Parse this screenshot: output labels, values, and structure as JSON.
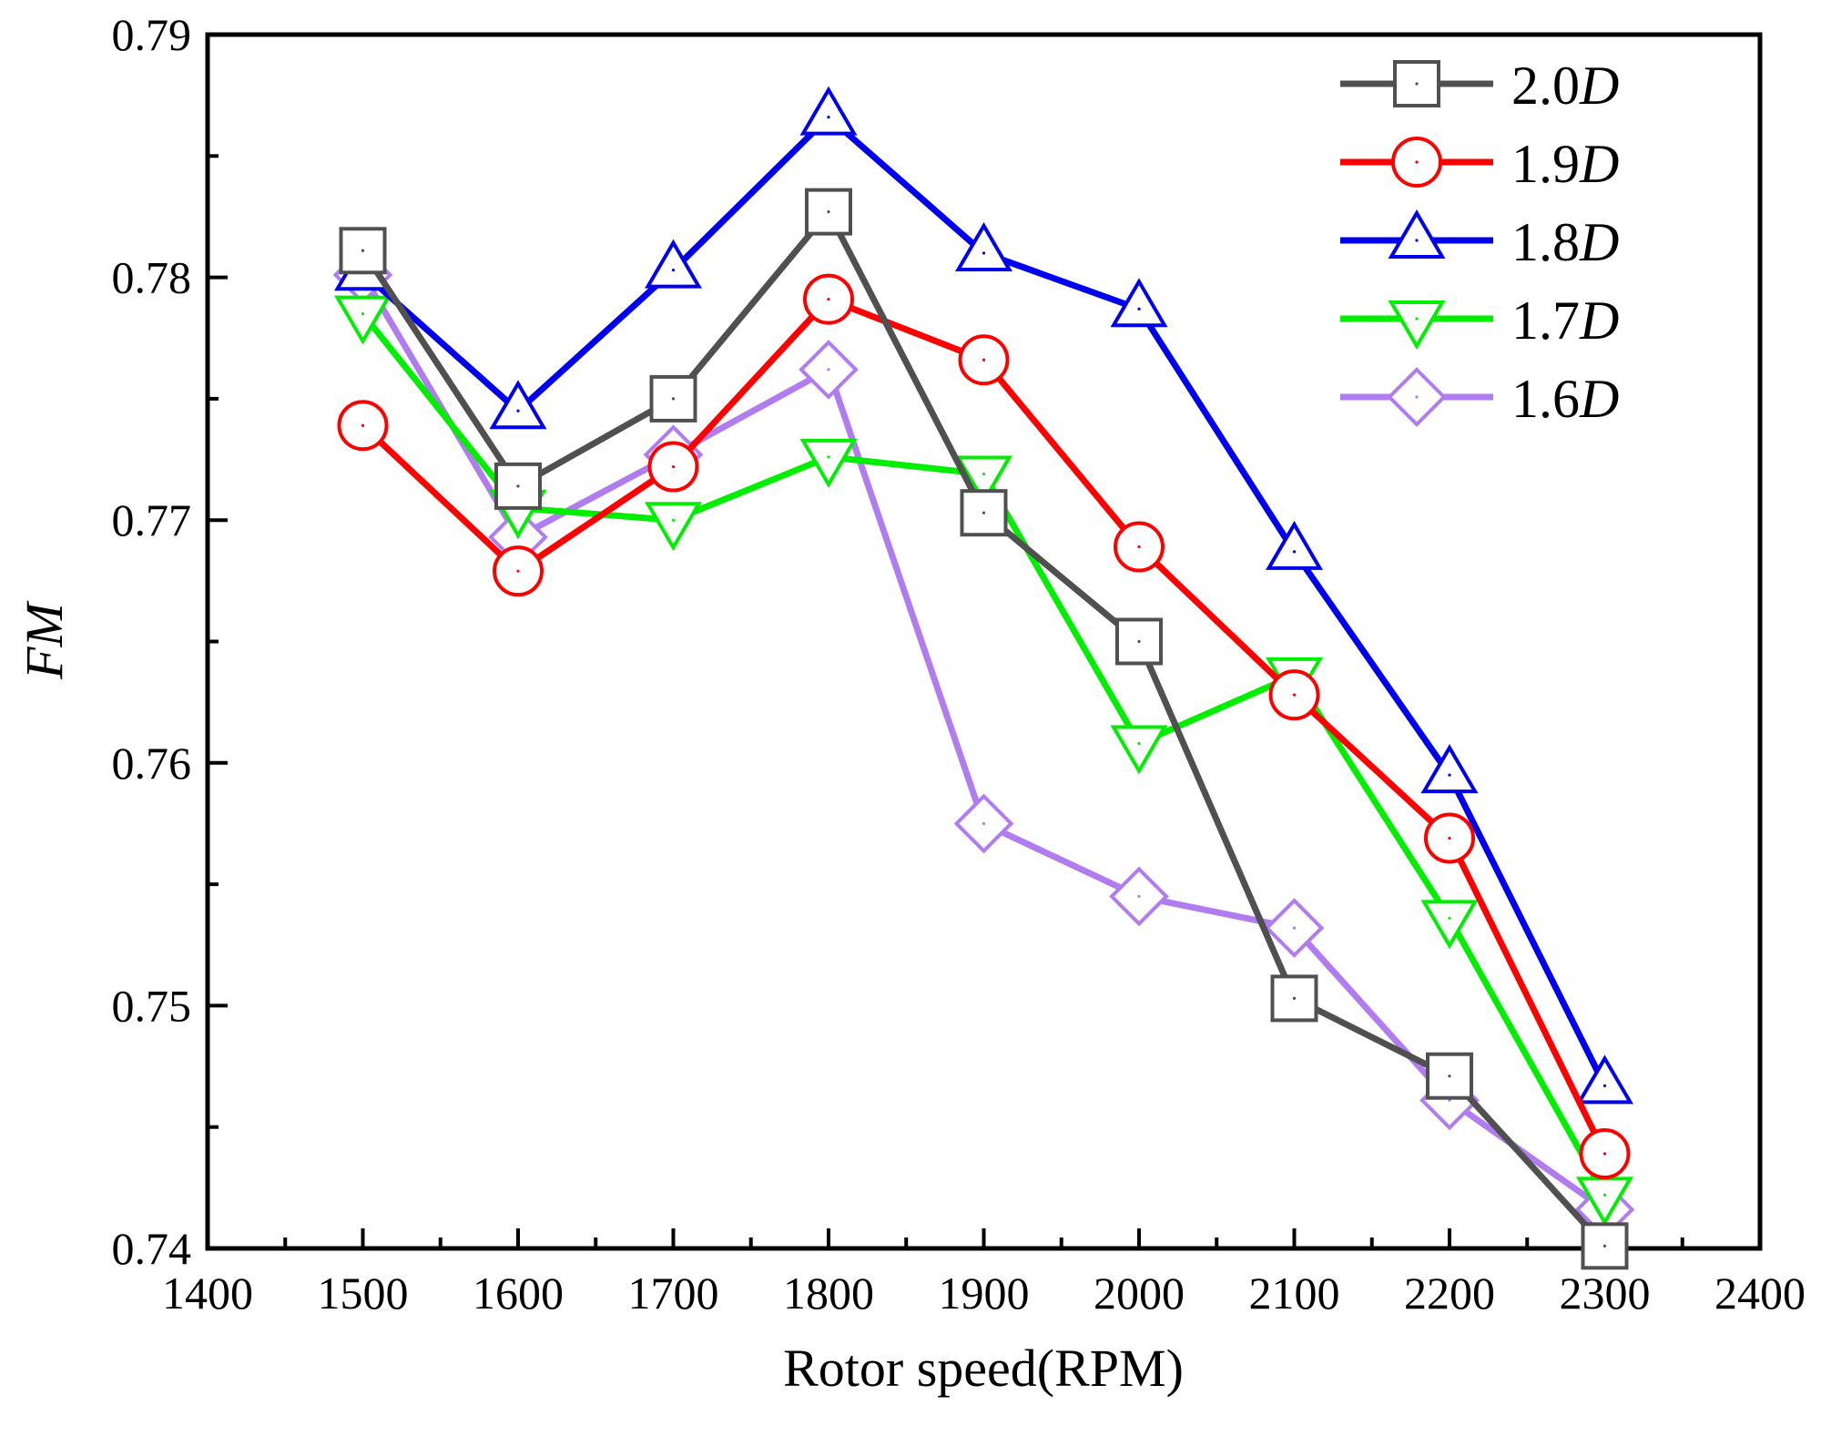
{
  "chart_data": {
    "type": "line",
    "title": "",
    "xlabel": "Rotor speed(RPM)",
    "ylabel": "FM",
    "xlim": [
      1400,
      2400
    ],
    "ylim": [
      0.74,
      0.79
    ],
    "xticks": [
      1400,
      1500,
      1600,
      1700,
      1800,
      1900,
      2000,
      2100,
      2200,
      2300,
      2400
    ],
    "yticks": [
      0.74,
      0.75,
      0.76,
      0.77,
      0.78,
      0.79
    ],
    "x": [
      1500,
      1600,
      1700,
      1800,
      1900,
      2000,
      2100,
      2200,
      2300
    ],
    "legend_position": "top-right",
    "grid": false,
    "series": [
      {
        "name_main": "2.0",
        "name_unit": "D",
        "color": "#505050",
        "marker": "square",
        "values": [
          0.7811,
          0.7714,
          0.775,
          0.7827,
          0.7703,
          0.765,
          0.7503,
          0.7471,
          0.7401
        ]
      },
      {
        "name_main": "1.9",
        "name_unit": "D",
        "color": "#ff0000",
        "marker": "circle",
        "values": [
          0.7739,
          0.7679,
          0.7722,
          0.7791,
          0.7766,
          0.7689,
          0.7628,
          0.7569,
          0.7439
        ]
      },
      {
        "name_main": "1.8",
        "name_unit": "D",
        "color": "#0000ee",
        "marker": "triangle-up",
        "values": [
          0.7802,
          0.7745,
          0.7803,
          0.7866,
          0.781,
          0.7787,
          0.7687,
          0.7595,
          0.7467
        ]
      },
      {
        "name_main": "1.7",
        "name_unit": "D",
        "color": "#00ee00",
        "marker": "triangle-down",
        "values": [
          0.7785,
          0.7705,
          0.77,
          0.7726,
          0.7719,
          0.7608,
          0.7636,
          0.7536,
          0.7422
        ]
      },
      {
        "name_main": "1.6",
        "name_unit": "D",
        "color": "#b07cf0",
        "marker": "diamond",
        "values": [
          0.7801,
          0.7693,
          0.7727,
          0.7762,
          0.7575,
          0.7545,
          0.7532,
          0.7461,
          0.7416
        ]
      }
    ]
  }
}
